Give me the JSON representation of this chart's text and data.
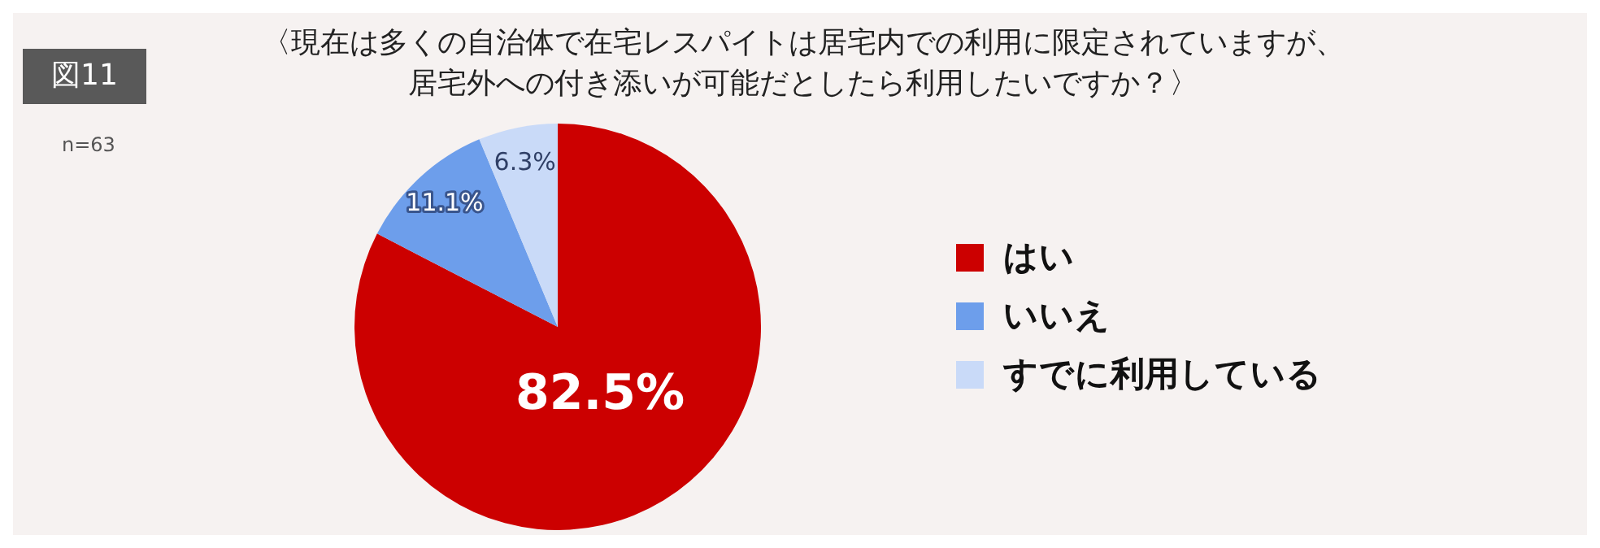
{
  "chart_data": {
    "type": "pie",
    "title": "〈現在は多くの自治体で在宅レスパイトは居宅内での利用に限定されていますが、居宅外への付き添いが可能だとしたら利用したいですか？〉",
    "annotations": [
      "図11",
      "n=63"
    ],
    "categories": [
      "はい",
      "いいえ",
      "すでに利用している"
    ],
    "values": [
      82.5,
      11.1,
      6.3
    ],
    "value_labels": [
      "82.5%",
      "11.1%",
      "6.3%"
    ],
    "colors": [
      "#cc0000",
      "#6d9eeb",
      "#c9daf8"
    ],
    "legend": "right"
  }
}
